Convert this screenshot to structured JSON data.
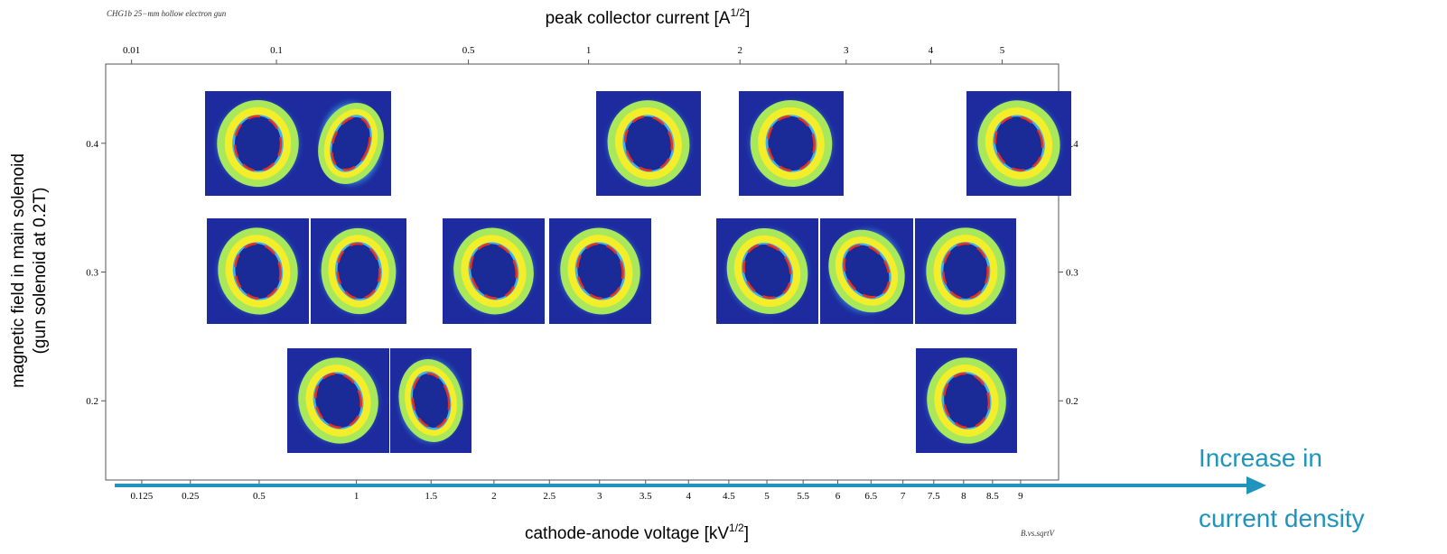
{
  "chart_data": {
    "type": "image-grid",
    "title": "CHG1b 25−mm hollow electron gun",
    "footnote": "B.vs.sqrtV",
    "x_label": {
      "text": "cathode-anode voltage [kV",
      "sup": "1/2",
      "end": "]"
    },
    "x2_label": {
      "text": "peak collector current [A",
      "sup": "1/2",
      "end": "]"
    },
    "y_label": [
      "magnetic field in main solenoid",
      "(gun solenoid at 0.2T)"
    ],
    "annotation": [
      "Increase in",
      "current density"
    ],
    "xscale": "sqrt",
    "xlim": [
      0.06,
      9.7
    ],
    "xticks": [
      0.125,
      0.25,
      0.5,
      1,
      1.5,
      2,
      2.5,
      3,
      3.5,
      4,
      4.5,
      5,
      5.5,
      6,
      6.5,
      7,
      7.5,
      8,
      8.5,
      9
    ],
    "x2scale": "cbrt",
    "x2lim": [
      0.005,
      5.9
    ],
    "x2ticks": [
      0.01,
      0.1,
      0.5,
      1,
      2,
      3,
      4,
      5
    ],
    "ylim": [
      0.1385,
      0.4615
    ],
    "yticks": [
      0.2,
      0.3,
      0.4
    ],
    "arrow_color": "#1f94bd"
  }
}
